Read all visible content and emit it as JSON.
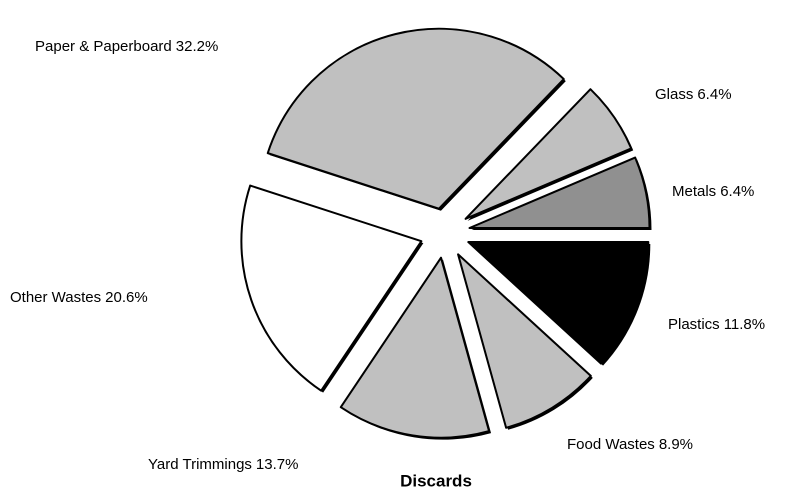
{
  "chart_data": {
    "type": "pie",
    "title": "Discards",
    "categories": [
      "Plastics",
      "Food Wastes",
      "Yard Trimmings",
      "Other Wastes",
      "Paper & Paperboard",
      "Glass",
      "Metals"
    ],
    "values": [
      11.8,
      8.9,
      13.7,
      20.6,
      32.2,
      6.4,
      6.4
    ],
    "value_labels": [
      "11.8%",
      "8.9%",
      "13.7%",
      "20.6%",
      "32.2%",
      "6.4%",
      "6.4%"
    ],
    "colors": [
      "#000000",
      "#c0c0c0",
      "#c0c0c0",
      "#ffffff",
      "#c0c0c0",
      "#c0c0c0",
      "#909090"
    ]
  }
}
